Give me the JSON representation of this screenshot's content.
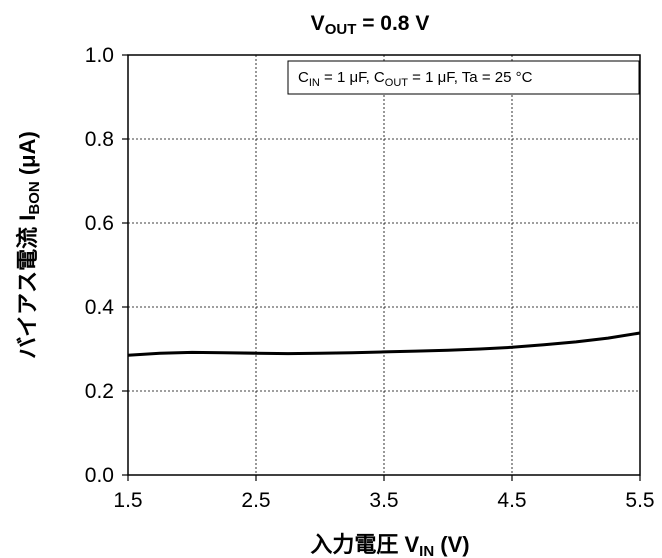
{
  "chart_data": {
    "type": "line",
    "title": {
      "main": "V",
      "sub": "OUT",
      "rest": " = 0.8 V"
    },
    "xlabel": {
      "main": "入力電圧  V",
      "sub": "IN",
      "rest": " (V)"
    },
    "ylabel": {
      "main": "バイアス電流  I",
      "sub": "BON",
      "rest": " (μA)"
    },
    "annotation": {
      "parts": [
        {
          "t": "C"
        },
        {
          "t": "IN",
          "sub": true
        },
        {
          "t": " = 1 μF, C"
        },
        {
          "t": "OUT",
          "sub": true
        },
        {
          "t": " = 1 μF, Ta = 25 °C"
        }
      ]
    },
    "xlim": [
      1.5,
      5.5
    ],
    "ylim": [
      0.0,
      1.0
    ],
    "xticks": [
      1.5,
      2.5,
      3.5,
      4.5,
      5.5
    ],
    "xtick_labels": [
      "1.5",
      "2.5",
      "3.5",
      "4.5",
      "5.5"
    ],
    "yticks": [
      0.0,
      0.2,
      0.4,
      0.6,
      0.8,
      1.0
    ],
    "ytick_labels": [
      "0.0",
      "0.2",
      "0.4",
      "0.6",
      "0.8",
      "1.0"
    ],
    "grid": true,
    "series": [
      {
        "color": "#000000",
        "x": [
          1.5,
          1.75,
          2.0,
          2.25,
          2.5,
          2.75,
          3.0,
          3.25,
          3.5,
          3.75,
          4.0,
          4.25,
          4.5,
          4.75,
          5.0,
          5.25,
          5.5
        ],
        "y": [
          0.285,
          0.29,
          0.292,
          0.291,
          0.29,
          0.289,
          0.29,
          0.291,
          0.293,
          0.295,
          0.297,
          0.3,
          0.304,
          0.31,
          0.317,
          0.326,
          0.338
        ]
      }
    ]
  }
}
